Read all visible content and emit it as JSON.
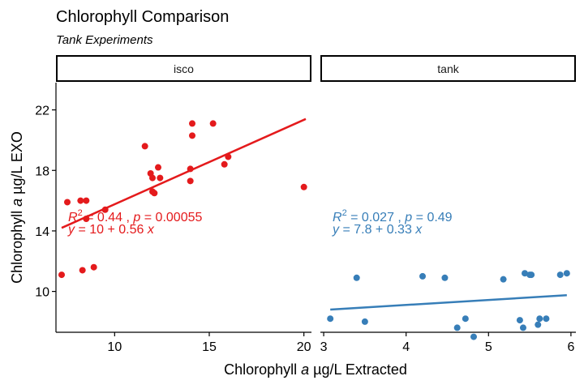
{
  "chart_data": {
    "type": "scatter",
    "title": "Chlorophyll Comparison",
    "subtitle": "Tank Experiments",
    "xlabel_parts": [
      "Chlorophyll ",
      "a",
      " µg/L Extracted"
    ],
    "ylabel_parts": [
      "Chlorophyll ",
      "a",
      " µg/L EXO"
    ],
    "ylim": [
      7.3,
      23.8
    ],
    "yticks": [
      10,
      14,
      18,
      22
    ],
    "grid": false,
    "legend": "none",
    "panels": [
      {
        "name": "isco",
        "color": "#E41A1C",
        "xlim": [
          6.9,
          20.4
        ],
        "xticks": [
          10,
          15,
          20
        ],
        "points": {
          "x": [
            7.2,
            7.5,
            8.2,
            8.3,
            8.5,
            8.5,
            8.9,
            9.5,
            11.6,
            11.9,
            12.0,
            12.0,
            12.1,
            12.3,
            12.4,
            14.0,
            14.0,
            14.1,
            14.1,
            15.2,
            15.8,
            16.0,
            20.0
          ],
          "y": [
            11.1,
            15.9,
            16.0,
            11.4,
            16.0,
            14.8,
            11.6,
            15.4,
            19.6,
            17.8,
            16.6,
            17.5,
            16.5,
            18.2,
            17.5,
            17.3,
            18.1,
            20.3,
            21.1,
            21.1,
            18.4,
            18.9,
            16.9
          ]
        },
        "fit": {
          "x": [
            7.2,
            20.1
          ],
          "y": [
            14.2,
            21.4
          ]
        },
        "annotation": {
          "r2_prefix": "R",
          "r2_sup": "2",
          "r2_rest": " = 0.44 ,  ",
          "p_italic": "p",
          "p_rest": " = 0.00055",
          "eq_y": "y",
          "eq_mid": " = 10 + 0.56 ",
          "eq_x": "x"
        }
      },
      {
        "name": "tank",
        "color": "#377EB8",
        "xlim": [
          2.96,
          6.06
        ],
        "xticks": [
          3,
          4,
          5,
          6
        ],
        "points": {
          "x": [
            3.08,
            3.4,
            3.5,
            4.2,
            4.47,
            4.62,
            4.72,
            4.82,
            5.18,
            5.38,
            5.42,
            5.44,
            5.5,
            5.52,
            5.6,
            5.62,
            5.7,
            5.87,
            5.95
          ],
          "y": [
            8.2,
            10.9,
            8.0,
            11.0,
            10.9,
            7.6,
            8.2,
            7.0,
            10.8,
            8.1,
            7.6,
            11.2,
            11.1,
            11.1,
            7.8,
            8.2,
            8.2,
            11.1,
            11.2
          ]
        },
        "fit": {
          "x": [
            3.08,
            5.95
          ],
          "y": [
            8.8,
            9.75
          ]
        },
        "annotation": {
          "r2_prefix": "R",
          "r2_sup": "2",
          "r2_rest": " = 0.027 ,  ",
          "p_italic": "p",
          "p_rest": " = 0.49",
          "eq_y": "y",
          "eq_mid": " = 7.8 + 0.33 ",
          "eq_x": "x"
        }
      }
    ]
  }
}
